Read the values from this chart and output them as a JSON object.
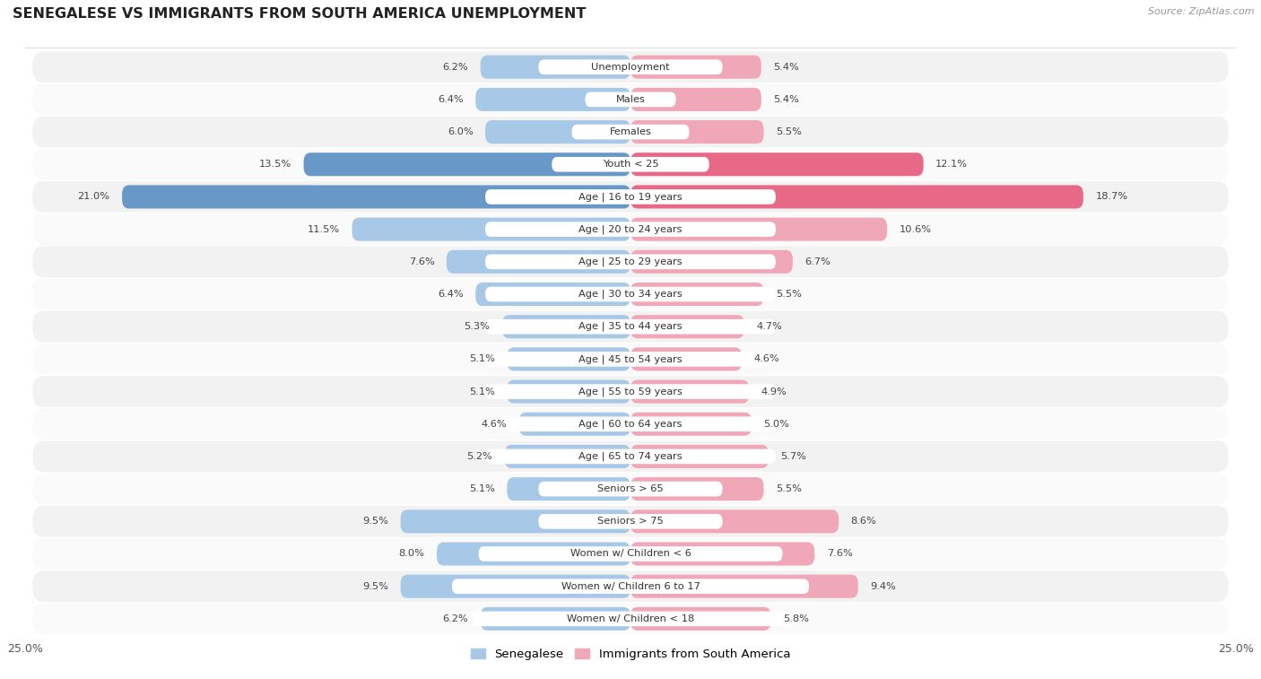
{
  "title": "SENEGALESE VS IMMIGRANTS FROM SOUTH AMERICA UNEMPLOYMENT",
  "source": "Source: ZipAtlas.com",
  "categories": [
    "Unemployment",
    "Males",
    "Females",
    "Youth < 25",
    "Age | 16 to 19 years",
    "Age | 20 to 24 years",
    "Age | 25 to 29 years",
    "Age | 30 to 34 years",
    "Age | 35 to 44 years",
    "Age | 45 to 54 years",
    "Age | 55 to 59 years",
    "Age | 60 to 64 years",
    "Age | 65 to 74 years",
    "Seniors > 65",
    "Seniors > 75",
    "Women w/ Children < 6",
    "Women w/ Children 6 to 17",
    "Women w/ Children < 18"
  ],
  "senegalese": [
    6.2,
    6.4,
    6.0,
    13.5,
    21.0,
    11.5,
    7.6,
    6.4,
    5.3,
    5.1,
    5.1,
    4.6,
    5.2,
    5.1,
    9.5,
    8.0,
    9.5,
    6.2
  ],
  "south_america": [
    5.4,
    5.4,
    5.5,
    12.1,
    18.7,
    10.6,
    6.7,
    5.5,
    4.7,
    4.6,
    4.9,
    5.0,
    5.7,
    5.5,
    8.6,
    7.6,
    9.4,
    5.8
  ],
  "senegalese_color_normal": "#a8c8e8",
  "south_america_color_normal": "#f0a8b8",
  "senegalese_color_highlight": "#6898c8",
  "south_america_color_highlight": "#e86888",
  "row_bg_light": "#f2f2f2",
  "row_bg_white": "#fafafa",
  "xlim": 25.0,
  "legend_label_left": "Senegalese",
  "legend_label_right": "Immigrants from South America"
}
